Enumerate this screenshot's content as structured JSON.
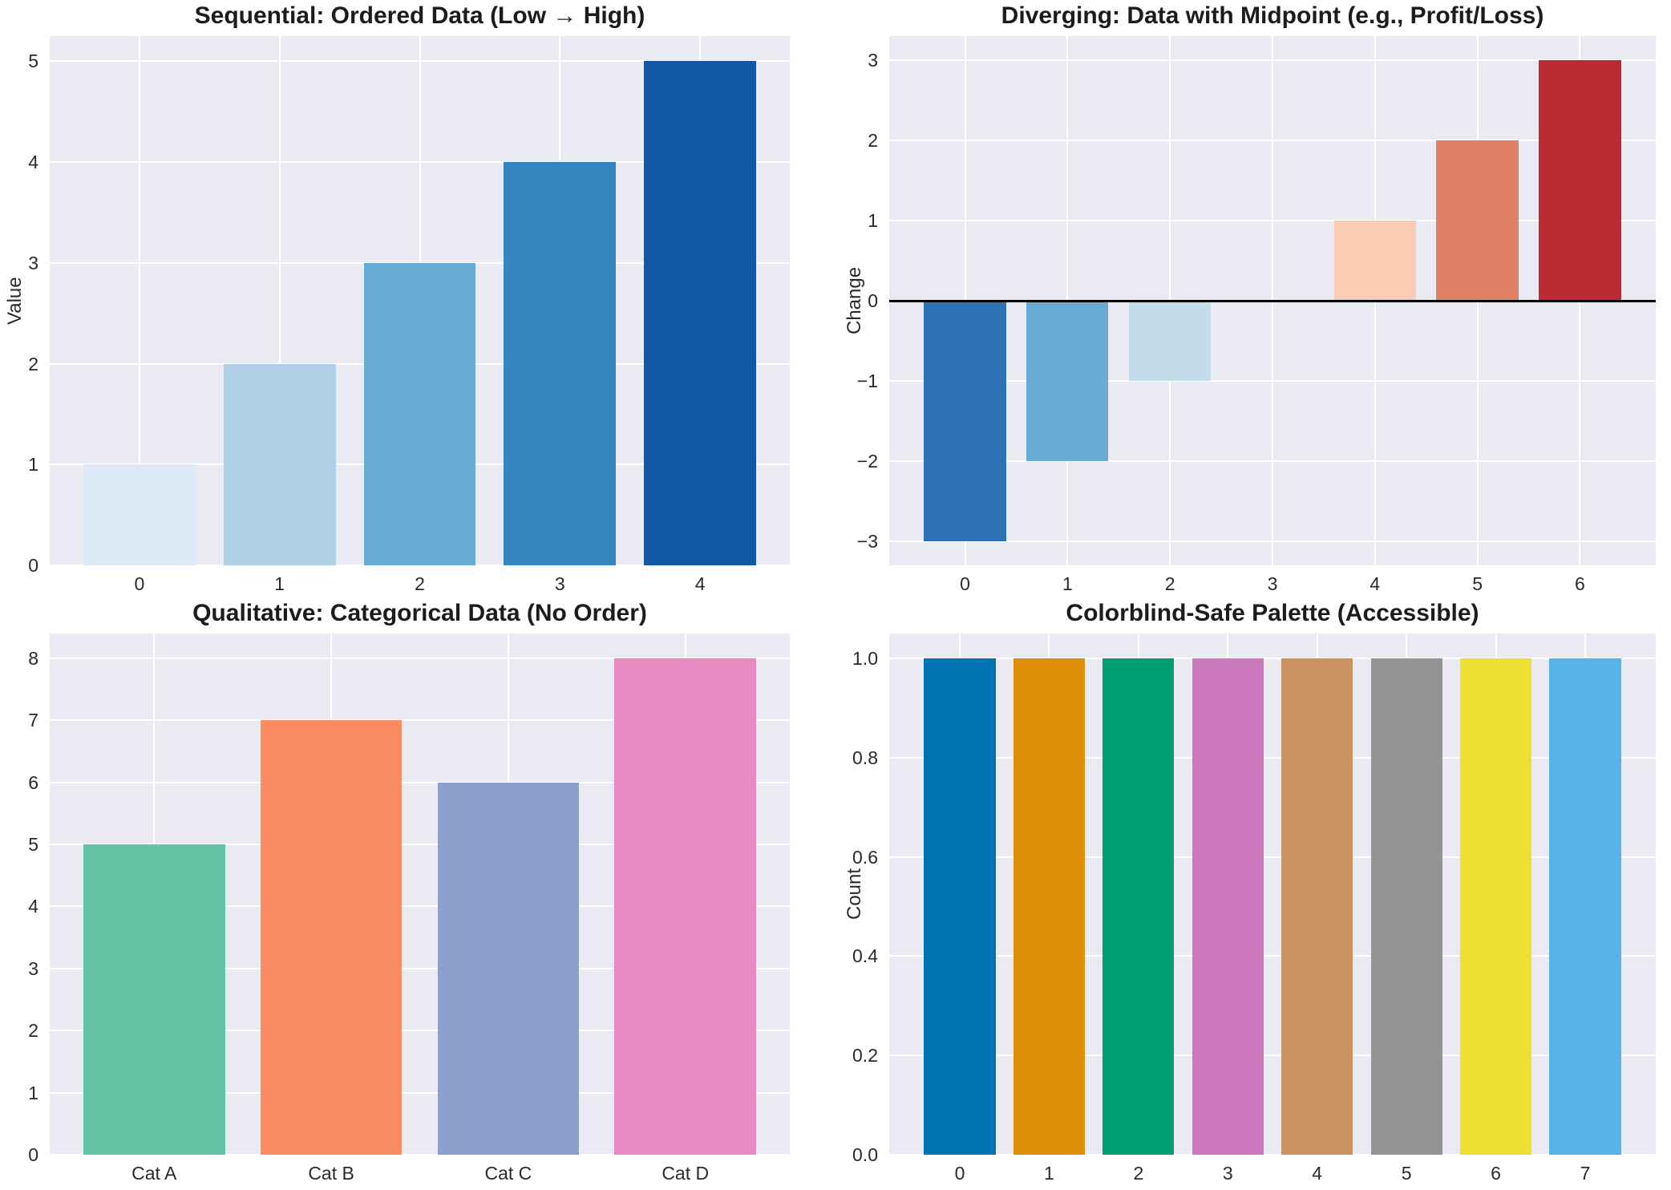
{
  "figure": {
    "background": "#ffffff",
    "axes_background": "#e9eaf2",
    "grid_color": "#ffffff",
    "tick_color": "#2a2a2a",
    "title_color": "#1c1c1c"
  },
  "chart_data": [
    {
      "type": "bar",
      "title": "Sequential: Ordered Data (Low → High)",
      "ylabel": "Value",
      "xlabel": "",
      "categories": [
        "0",
        "1",
        "2",
        "3",
        "4"
      ],
      "values": [
        1,
        2,
        3,
        4,
        5
      ],
      "bar_colors": [
        "#dce9f6",
        "#aecfe6",
        "#68acd6",
        "#3585c1",
        "#1257a5"
      ],
      "palette": "Blues sequential",
      "ylim": [
        0,
        5.25
      ],
      "yticks": [
        0,
        1,
        2,
        3,
        4,
        5
      ],
      "ytick_labels": [
        "0",
        "1",
        "2",
        "3",
        "4",
        "5"
      ],
      "grid": true,
      "legend": "none",
      "zero_line": false
    },
    {
      "type": "bar",
      "title": "Diverging: Data with Midpoint (e.g., Profit/Loss)",
      "ylabel": "Change",
      "xlabel": "",
      "categories": [
        "0",
        "1",
        "2",
        "3",
        "4",
        "5",
        "6"
      ],
      "values": [
        -3,
        -2,
        -1,
        0,
        1,
        2,
        3
      ],
      "bar_colors": [
        "#2c71b3",
        "#69abd3",
        "#c4dcea",
        "#f7f7f7",
        "#f9ccb3",
        "#e08064",
        "#bb2a33"
      ],
      "palette": "RdBu diverging",
      "ylim": [
        -3.3,
        3.3
      ],
      "yticks": [
        -3,
        -2,
        -1,
        0,
        1,
        2,
        3
      ],
      "ytick_labels": [
        "−3",
        "−2",
        "−1",
        "0",
        "1",
        "2",
        "3"
      ],
      "grid": true,
      "legend": "none",
      "zero_line": true
    },
    {
      "type": "bar",
      "title": "Qualitative: Categorical Data (No Order)",
      "ylabel": null,
      "xlabel": "",
      "categories": [
        "Cat A",
        "Cat B",
        "Cat C",
        "Cat D"
      ],
      "values": [
        5,
        7,
        6,
        8
      ],
      "bar_colors": [
        "#66c2a5",
        "#fc8d62",
        "#8da0cb",
        "#e78ac3"
      ],
      "palette": "Set2 qualitative",
      "ylim": [
        0,
        8.4
      ],
      "yticks": [
        0,
        1,
        2,
        3,
        4,
        5,
        6,
        7,
        8
      ],
      "ytick_labels": [
        "0",
        "1",
        "2",
        "3",
        "4",
        "5",
        "6",
        "7",
        "8"
      ],
      "grid": true,
      "legend": "none",
      "zero_line": false
    },
    {
      "type": "bar",
      "title": "Colorblind-Safe Palette (Accessible)",
      "ylabel": "Count",
      "xlabel": "",
      "categories": [
        "0",
        "1",
        "2",
        "3",
        "4",
        "5",
        "6",
        "7"
      ],
      "values": [
        1,
        1,
        1,
        1,
        1,
        1,
        1,
        1
      ],
      "bar_colors": [
        "#0173b2",
        "#de8f05",
        "#029e73",
        "#cc78bc",
        "#ca9161",
        "#949494",
        "#ece133",
        "#56b4e9"
      ],
      "palette": "colorblind-safe",
      "ylim": [
        0,
        1.05
      ],
      "yticks": [
        0,
        0.2,
        0.4,
        0.6,
        0.8,
        1.0
      ],
      "ytick_labels": [
        "0.0",
        "0.2",
        "0.4",
        "0.6",
        "0.8",
        "1.0"
      ],
      "grid": true,
      "legend": "none",
      "zero_line": false
    }
  ]
}
